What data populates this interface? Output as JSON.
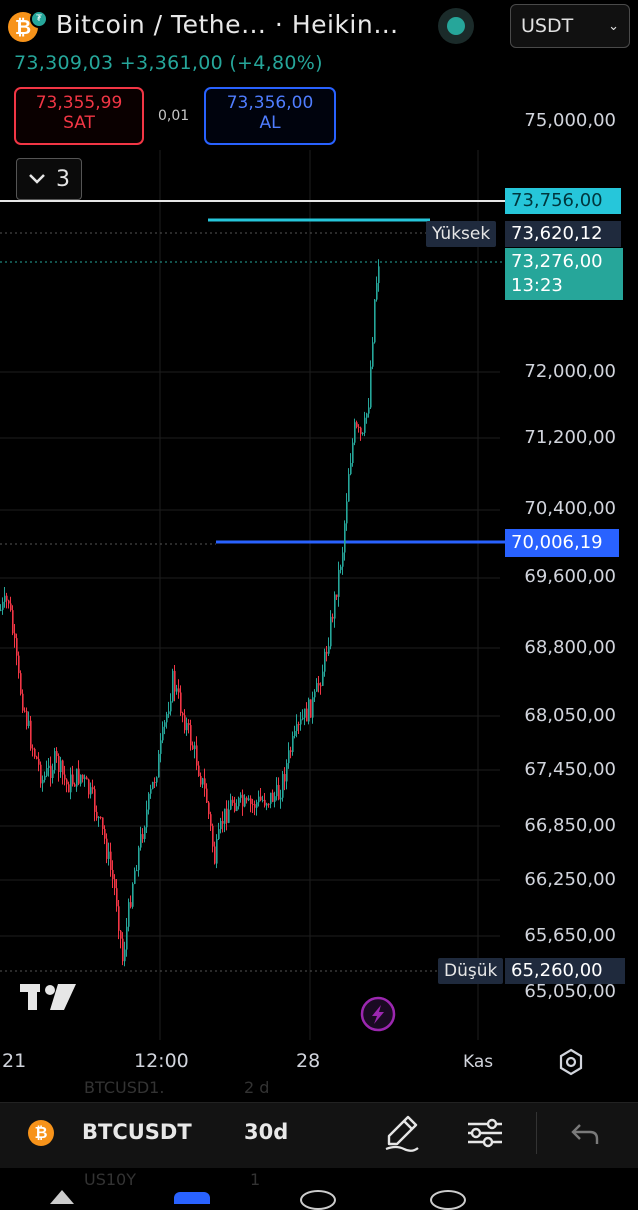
{
  "header": {
    "title": "Bitcoin / Tethe… · Heikin…",
    "currency": "USDT",
    "last_price": "73,309,03",
    "change": "+3,361,00",
    "change_pct": "(+4,80%)"
  },
  "trade": {
    "sell_price": "73,355,99",
    "sell_label": "SAT",
    "spread": "0,01",
    "buy_price": "73,356,00",
    "buy_label": "AL"
  },
  "panel_toggle": {
    "count": "3"
  },
  "price_scale": {
    "labels": [
      "75,000,00",
      "72,000,00",
      "71,200,00",
      "70,400,00",
      "69,600,00",
      "68,800,00",
      "68,050,00",
      "67,450,00",
      "66,850,00",
      "66,250,00",
      "65,650,00",
      "65,050,00"
    ]
  },
  "tags": {
    "white_line": "73,756,00",
    "high_label": "Yüksek",
    "high_value": "73,620,12",
    "current_price": "73,276,00",
    "countdown": "13:23",
    "blue_line": "70,006,19",
    "low_label": "Düşük",
    "low_value": "65,260,00"
  },
  "time_axis": {
    "labels": [
      "21",
      "12:00",
      "28",
      "Kas"
    ]
  },
  "bottom_bar": {
    "symbol": "BTCUSDT",
    "interval": "30d"
  },
  "ghost_rows": {
    "row1_symbol": "BTCUSD1.",
    "row1_value": "2 d",
    "row2_symbol": "US10Y",
    "row2_value": "1"
  },
  "colors": {
    "up": "#26a69a",
    "down": "#f23645",
    "accent_blue": "#2962ff",
    "cyan_line": "#26c6da",
    "bitcoin": "#f7931a",
    "lightning": "#9c27b0"
  },
  "icons": {
    "lightning": "lightning-icon",
    "settings": "gear-icon",
    "draw": "pencil-icon",
    "indicators": "sliders-icon",
    "undo": "undo-icon",
    "brand": "tradingview-logo"
  }
}
